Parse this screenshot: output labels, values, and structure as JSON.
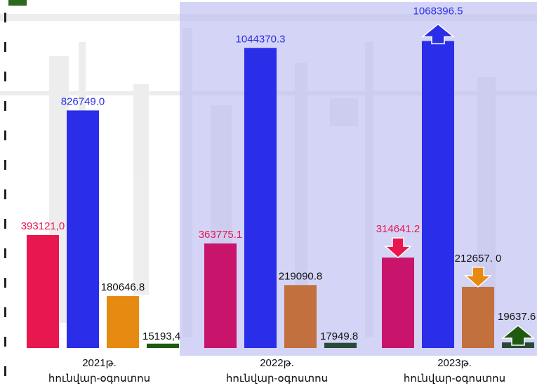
{
  "chart_data": {
    "type": "bar",
    "categories": [
      [
        "2021թ.",
        "հունվար-օգոստոս"
      ],
      [
        "2022թ.",
        "հունվար-օգոստոս"
      ],
      [
        "2023թ.",
        "հունվար-օգոստոս"
      ]
    ],
    "series": [
      {
        "color": "#e8174f",
        "values": [
          393121.0,
          363775.1,
          314641.2
        ],
        "labels": [
          "393121,0",
          "363775.1",
          "314641.2"
        ]
      },
      {
        "color": "#2a2ee8",
        "values": [
          826749.0,
          1044370.3,
          1068396.5
        ],
        "labels": [
          "826749.0",
          "1044370.3",
          "1068396.5"
        ]
      },
      {
        "color": "#e68a12",
        "values": [
          180646.8,
          219090.8,
          212657.0
        ],
        "labels": [
          "180646.8",
          "219090.8",
          "212657. 0"
        ]
      },
      {
        "color": "#1f5a10",
        "values": [
          15193.4,
          17949.8,
          19637.6
        ],
        "labels": [
          "15193,4",
          "17949.8",
          "19637.6"
        ]
      }
    ],
    "trend_arrows": {
      "2": [
        {
          "series": 0,
          "direction": "down"
        },
        {
          "series": 1,
          "direction": "up"
        },
        {
          "series": 2,
          "direction": "down"
        },
        {
          "series": 3,
          "direction": "up"
        }
      ]
    },
    "highlight_categories": [
      1,
      2
    ],
    "ylim": [
      0,
      1150000
    ],
    "grid": false,
    "legend": "none",
    "colors": {
      "highlight_panel": "#b8b8f2",
      "label_series_0": "#e8174f",
      "label_series_1": "#2a2ee8",
      "label_series_2": "#111111",
      "label_series_3": "#111111",
      "muted_pink": "#c8146a",
      "muted_orange": "#c2703e",
      "muted_green": "#2a4a38"
    }
  }
}
